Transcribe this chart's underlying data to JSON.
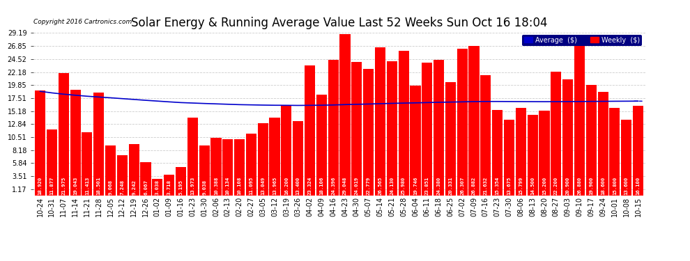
{
  "title": "Solar Energy & Running Average Value Last 52 Weeks Sun Oct 16 18:04",
  "copyright": "Copyright 2016 Cartronics.com",
  "background_color": "#ffffff",
  "plot_bg_color": "#ffffff",
  "bar_color": "#ff0000",
  "avg_line_color": "#0000cc",
  "ytick_labels": [
    "1.17",
    "3.51",
    "5.84",
    "8.18",
    "10.51",
    "12.84",
    "15.18",
    "17.51",
    "19.85",
    "22.18",
    "24.52",
    "26.85",
    "29.19"
  ],
  "ytick_values": [
    1.17,
    3.51,
    5.84,
    8.18,
    10.51,
    12.84,
    15.18,
    17.51,
    19.85,
    22.18,
    24.52,
    26.85,
    29.19
  ],
  "categories": [
    "10-24",
    "10-31",
    "11-07",
    "11-14",
    "11-21",
    "11-28",
    "12-05",
    "12-12",
    "12-19",
    "12-26",
    "01-02",
    "01-09",
    "01-16",
    "01-23",
    "01-30",
    "02-06",
    "02-13",
    "02-20",
    "02-27",
    "03-05",
    "03-12",
    "03-19",
    "03-26",
    "04-02",
    "04-09",
    "04-16",
    "04-23",
    "04-30",
    "05-07",
    "05-14",
    "05-21",
    "05-28",
    "06-04",
    "06-11",
    "06-18",
    "06-25",
    "07-02",
    "07-09",
    "07-16",
    "07-23",
    "07-30",
    "08-06",
    "08-13",
    "08-20",
    "08-27",
    "09-03",
    "09-10",
    "09-17",
    "09-24",
    "10-01",
    "10-08",
    "10-15"
  ],
  "weekly_values": [
    18.92,
    11.877,
    21.975,
    19.043,
    11.413,
    18.501,
    9.068,
    7.248,
    9.242,
    6.067,
    3.038,
    3.718,
    5.195,
    13.973,
    9.038,
    10.388,
    10.134,
    10.108,
    11.095,
    13.049,
    13.965,
    16.2,
    13.4,
    23.324,
    18.106,
    24.396,
    29.048,
    24.019,
    22.779,
    26.565,
    24.13,
    25.98,
    19.746,
    23.851,
    24.38,
    20.331,
    26.307,
    26.882,
    21.632,
    15.354,
    13.675,
    15.799,
    14.5,
    15.2,
    22.2,
    20.9,
    26.88,
    19.9,
    18.6,
    15.8,
    13.6,
    16.1
  ],
  "avg_line": [
    18.73,
    18.45,
    18.22,
    18.03,
    17.85,
    17.71,
    17.57,
    17.42,
    17.27,
    17.12,
    16.98,
    16.84,
    16.71,
    16.63,
    16.55,
    16.48,
    16.41,
    16.34,
    16.3,
    16.26,
    16.23,
    16.22,
    16.2,
    16.22,
    16.24,
    16.28,
    16.35,
    16.4,
    16.45,
    16.51,
    16.57,
    16.62,
    16.66,
    16.71,
    16.76,
    16.8,
    16.84,
    16.89,
    16.91,
    16.91,
    16.9,
    16.89,
    16.88,
    16.87,
    16.88,
    16.89,
    16.9,
    16.92,
    16.93,
    16.95,
    16.96,
    16.97
  ],
  "ymin": 1.17,
  "ymax": 29.19,
  "grid_color": "#cccccc",
  "title_fontsize": 12,
  "tick_fontsize": 7,
  "bar_value_fontsize": 5.2
}
